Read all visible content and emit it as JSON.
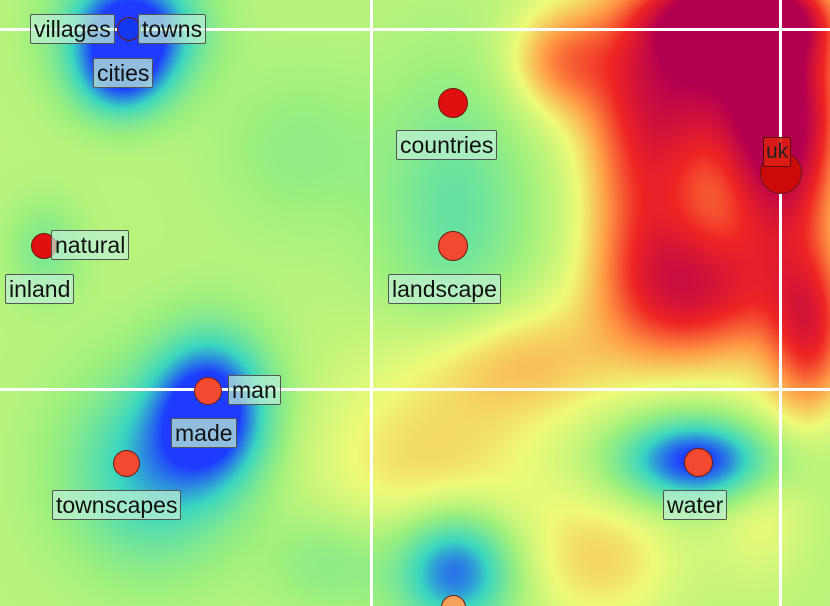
{
  "colors": {
    "grid": "#ffffff",
    "node_default": "#f24a30",
    "node_highlight": "#e01010",
    "node_blue": "#1438f0",
    "node_orange": "#f7a25a",
    "label_bg": "#c4f0d8",
    "label_uk_bg": "#d81c10"
  },
  "heatmap": {
    "palette": [
      "#1e3cff",
      "#3ad6c0",
      "#9ef07e",
      "#eefa78",
      "#ff9a45",
      "#ee2424",
      "#b40050"
    ]
  },
  "terms": [
    {
      "label": "villages",
      "color": "#1438f0",
      "node": true
    },
    {
      "label": "towns",
      "color": "#1438f0",
      "node": false
    },
    {
      "label": "cities",
      "color": "#1438f0",
      "node": false
    },
    {
      "label": "countries",
      "color": "#e01010",
      "node": true
    },
    {
      "label": "uk",
      "color": "#cc0a0a",
      "node": true
    },
    {
      "label": "natural",
      "color": "#e01010",
      "node": true
    },
    {
      "label": "inland",
      "color": "#e01010",
      "node": false
    },
    {
      "label": "landscape",
      "color": "#f24a30",
      "node": true
    },
    {
      "label": "man",
      "color": "#f24a30",
      "node": true
    },
    {
      "label": "made",
      "color": "#f24a30",
      "node": false
    },
    {
      "label": "townscapes",
      "color": "#f24a30",
      "node": true
    },
    {
      "label": "water",
      "color": "#f24a30",
      "node": true
    },
    {
      "label": "",
      "color": "#f7a25a",
      "node": true
    }
  ]
}
